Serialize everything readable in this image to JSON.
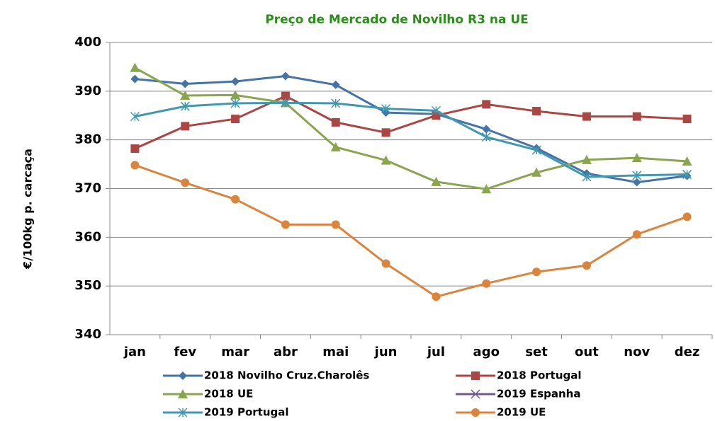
{
  "chart_data": {
    "type": "line",
    "title": "Preço de Mercado de Novilho R3 na UE",
    "y_label": "€/100kg p. carcaça",
    "categories": [
      "jan",
      "fev",
      "mar",
      "abr",
      "mai",
      "jun",
      "jul",
      "ago",
      "set",
      "out",
      "nov",
      "dez"
    ],
    "ylim": [
      340,
      400
    ],
    "yticks": [
      340,
      350,
      360,
      370,
      380,
      390,
      400
    ],
    "grid": true,
    "series": [
      {
        "name": "2018 Novilho Cruz.Charolês",
        "color": "#4572a7",
        "marker": "diamond",
        "values": [
          392.5,
          391.5,
          392,
          393.1,
          391.3,
          385.6,
          385.3,
          382.2,
          378.3,
          373.1,
          371.3,
          372.6
        ]
      },
      {
        "name": "2018 Portugal",
        "color": "#aa4643",
        "marker": "square",
        "values": [
          378.2,
          382.8,
          384.3,
          389,
          383.6,
          381.5,
          385,
          387.3,
          385.9,
          384.8,
          384.8,
          384.3
        ]
      },
      {
        "name": "2018 UE",
        "color": "#89a54e",
        "marker": "triangle",
        "values": [
          394.8,
          389.1,
          389.2,
          387.6,
          378.5,
          375.8,
          371.4,
          369.9,
          373.3,
          375.9,
          376.3,
          375.6
        ]
      },
      {
        "name": "2019 Espanha",
        "color": "#71588f",
        "marker": "x",
        "values": [
          null,
          null,
          null,
          null,
          null,
          null,
          null,
          null,
          null,
          null,
          null,
          null
        ]
      },
      {
        "name": "2019 Portugal",
        "color": "#4198af",
        "marker": "star",
        "values": [
          384.8,
          386.9,
          387.5,
          387.6,
          387.5,
          386.4,
          386,
          380.6,
          377.9,
          372.4,
          372.7,
          372.9
        ]
      },
      {
        "name": "2019 UE",
        "color": "#db843d",
        "marker": "circle",
        "values": [
          374.8,
          371.2,
          367.8,
          362.6,
          362.6,
          354.6,
          347.8,
          350.5,
          352.9,
          354.2,
          360.6,
          364.2
        ]
      }
    ]
  }
}
